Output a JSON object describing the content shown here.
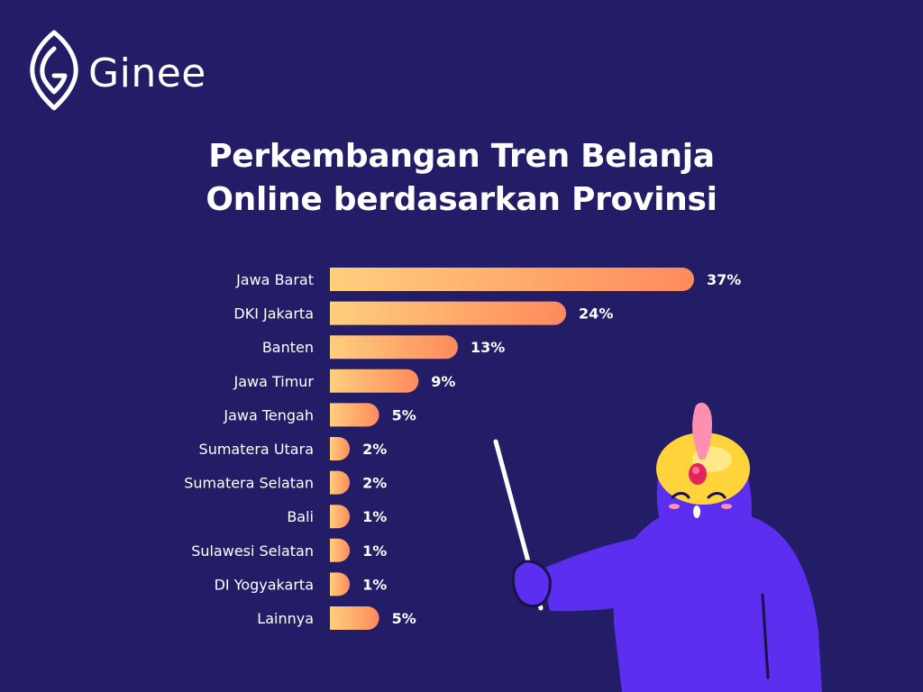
{
  "brand": {
    "name": "Ginee",
    "logo_icon": "ginee-leaf-logo-icon"
  },
  "colors": {
    "background": "#231c66",
    "bar_start": "#ffcf7d",
    "bar_end": "#ff8a5c",
    "character_body": "#5b2ef0",
    "turban": "#ffd43a"
  },
  "chart_data": {
    "type": "bar",
    "orientation": "horizontal",
    "title": "Perkembangan Tren Belanja Online berdasarkan Provinsi",
    "title_lines": [
      "Perkembangan Tren Belanja",
      "Online berdasarkan Provinsi"
    ],
    "categories": [
      "Jawa Barat",
      "DKI Jakarta",
      "Banten",
      "Jawa Timur",
      "Jawa Tengah",
      "Sumatera Utara",
      "Sumatera Selatan",
      "Bali",
      "Sulawesi Selatan",
      "DI Yogyakarta",
      "Lainnya"
    ],
    "values": [
      37,
      24,
      13,
      9,
      5,
      2,
      2,
      1,
      1,
      1,
      5
    ],
    "value_labels": [
      "37%",
      "24%",
      "13%",
      "9%",
      "5%",
      "2%",
      "2%",
      "1%",
      "1%",
      "1%",
      "5%"
    ],
    "unit": "%",
    "xlim": [
      0,
      37
    ],
    "grid": false,
    "legend": "none"
  }
}
